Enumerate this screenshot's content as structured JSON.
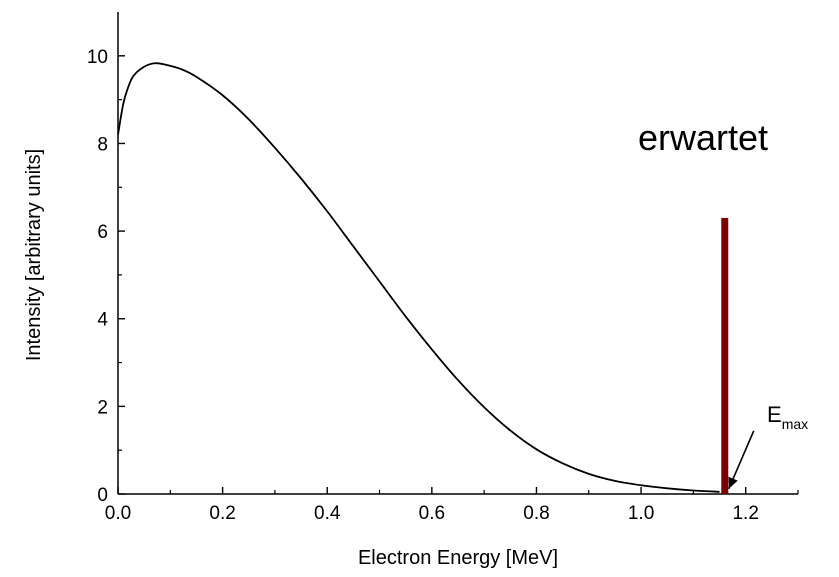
{
  "chart_data": {
    "type": "line",
    "xlabel": "Electron Energy [MeV]",
    "ylabel": "Intensity [arbitrary units]",
    "xlim": [
      0.0,
      1.3
    ],
    "ylim": [
      0,
      11
    ],
    "x_ticks": [
      "0.0",
      "0.2",
      "0.4",
      "0.6",
      "0.8",
      "1.0",
      "1.2"
    ],
    "x_tick_values": [
      0.0,
      0.2,
      0.4,
      0.6,
      0.8,
      1.0,
      1.2
    ],
    "y_ticks": [
      "0",
      "2",
      "4",
      "6",
      "8",
      "10"
    ],
    "y_tick_values": [
      0,
      2,
      4,
      6,
      8,
      10
    ],
    "grid": false,
    "series": [
      {
        "color": "#000000",
        "points": [
          [
            0.0,
            8.2
          ],
          [
            0.01,
            8.9
          ],
          [
            0.02,
            9.3
          ],
          [
            0.03,
            9.55
          ],
          [
            0.05,
            9.75
          ],
          [
            0.07,
            9.83
          ],
          [
            0.09,
            9.8
          ],
          [
            0.12,
            9.7
          ],
          [
            0.15,
            9.52
          ],
          [
            0.2,
            9.1
          ],
          [
            0.25,
            8.55
          ],
          [
            0.3,
            7.9
          ],
          [
            0.35,
            7.2
          ],
          [
            0.4,
            6.45
          ],
          [
            0.45,
            5.65
          ],
          [
            0.5,
            4.85
          ],
          [
            0.55,
            4.05
          ],
          [
            0.6,
            3.3
          ],
          [
            0.65,
            2.6
          ],
          [
            0.7,
            1.98
          ],
          [
            0.75,
            1.45
          ],
          [
            0.8,
            1.02
          ],
          [
            0.85,
            0.7
          ],
          [
            0.9,
            0.46
          ],
          [
            0.95,
            0.3
          ],
          [
            1.0,
            0.2
          ],
          [
            1.05,
            0.13
          ],
          [
            1.1,
            0.08
          ],
          [
            1.15,
            0.05
          ]
        ]
      }
    ],
    "marker_bar": {
      "x": 1.16,
      "y_top": 6.3,
      "y_bottom": 0,
      "color": "#7a0000"
    },
    "annotations": {
      "expected_label": "erwartet",
      "emax_main": "E",
      "emax_sub": "max",
      "arrow_target": [
        1.16,
        0.05
      ]
    }
  }
}
